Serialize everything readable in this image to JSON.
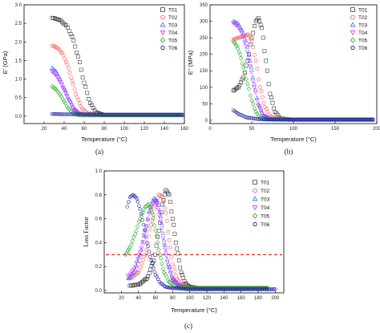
{
  "colors": {
    "T01": "#333333",
    "T02": "#ff4d4d",
    "T03": "#3a5fff",
    "T04": "#cc33ff",
    "T05": "#22aa22",
    "T06": "#2222aa",
    "reference_line": "#ee1111"
  },
  "marker_icons": {
    "T01": "square-icon",
    "T02": "circle-icon",
    "T03": "triangle-up-icon",
    "T04": "triangle-down-icon",
    "T05": "diamond-icon",
    "T06": "hexagon-icon"
  },
  "chart_data": [
    {
      "type": "scatter",
      "caption": "(a)",
      "xlabel": "Temperature (°C)",
      "ylabel": "E' (GPa)",
      "xlim": [
        0,
        160
      ],
      "ylim": [
        -0.2,
        3.0
      ],
      "xticks": [
        "20",
        "40",
        "60",
        "80",
        "100",
        "120",
        "140",
        "160"
      ],
      "yticks": [
        "0.0",
        "0.5",
        "1.0",
        "1.5",
        "2.0",
        "2.5",
        "3.0"
      ],
      "legend_position": "top-right",
      "series": [
        {
          "name": "T01",
          "x": [
            28,
            35,
            42,
            48,
            54,
            60,
            66,
            72,
            80,
            100,
            130,
            158
          ],
          "y": [
            2.65,
            2.6,
            2.45,
            2.15,
            1.6,
            0.9,
            0.35,
            0.1,
            0.03,
            0.03,
            0.03,
            0.03
          ]
        },
        {
          "name": "T02",
          "x": [
            28,
            33,
            38,
            43,
            48,
            53,
            58,
            64,
            75,
            100,
            130,
            158
          ],
          "y": [
            1.9,
            1.85,
            1.7,
            1.4,
            0.95,
            0.5,
            0.2,
            0.07,
            0.03,
            0.03,
            0.03,
            0.03
          ]
        },
        {
          "name": "T03",
          "x": [
            28,
            32,
            36,
            40,
            45,
            50,
            55,
            60,
            70,
            100,
            130,
            158
          ],
          "y": [
            1.3,
            1.2,
            1.0,
            0.75,
            0.45,
            0.2,
            0.08,
            0.04,
            0.03,
            0.03,
            0.03,
            0.03
          ]
        },
        {
          "name": "T04",
          "x": [
            28,
            32,
            36,
            40,
            45,
            50,
            55,
            60,
            70,
            100,
            130,
            158
          ],
          "y": [
            1.2,
            1.1,
            0.92,
            0.7,
            0.42,
            0.18,
            0.07,
            0.04,
            0.03,
            0.03,
            0.03,
            0.03
          ]
        },
        {
          "name": "T05",
          "x": [
            28,
            32,
            36,
            40,
            44,
            48,
            52,
            56,
            66,
            100,
            130,
            158
          ],
          "y": [
            0.8,
            0.72,
            0.58,
            0.4,
            0.22,
            0.1,
            0.05,
            0.03,
            0.03,
            0.03,
            0.03,
            0.03
          ]
        },
        {
          "name": "T06",
          "x": [
            28,
            40,
            60,
            80,
            100,
            120,
            140,
            158
          ],
          "y": [
            0.06,
            0.05,
            0.05,
            0.04,
            0.04,
            0.04,
            0.04,
            0.04
          ]
        }
      ]
    },
    {
      "type": "scatter",
      "caption": "(b)",
      "xlabel": "Temperature (°C)",
      "ylabel": "E'' (MPa)",
      "xlim": [
        0,
        200
      ],
      "ylim": [
        -10,
        350
      ],
      "xticks": [
        "0",
        "50",
        "100",
        "150",
        "200"
      ],
      "yticks": [
        "0",
        "50",
        "100",
        "150",
        "200",
        "250",
        "300",
        "350"
      ],
      "legend_position": "top-right",
      "series": [
        {
          "name": "T01",
          "x": [
            28,
            34,
            40,
            45,
            50,
            55,
            58,
            62,
            67,
            72,
            78,
            85,
            100,
            150,
            195
          ],
          "y": [
            90,
            100,
            130,
            180,
            250,
            300,
            310,
            280,
            180,
            80,
            25,
            5,
            2,
            2,
            2
          ]
        },
        {
          "name": "T02",
          "x": [
            28,
            34,
            40,
            46,
            50,
            55,
            60,
            66,
            72,
            80,
            100,
            150,
            195
          ],
          "y": [
            245,
            250,
            255,
            260,
            240,
            180,
            100,
            40,
            12,
            4,
            2,
            2,
            2
          ]
        },
        {
          "name": "T03",
          "x": [
            28,
            33,
            38,
            43,
            48,
            53,
            58,
            64,
            72,
            100,
            150,
            195
          ],
          "y": [
            300,
            295,
            275,
            240,
            180,
            110,
            50,
            15,
            4,
            2,
            2,
            2
          ]
        },
        {
          "name": "T04",
          "x": [
            28,
            33,
            38,
            43,
            48,
            53,
            58,
            64,
            72,
            100,
            150,
            195
          ],
          "y": [
            295,
            285,
            265,
            225,
            165,
            100,
            45,
            14,
            4,
            2,
            2,
            2
          ]
        },
        {
          "name": "T05",
          "x": [
            28,
            32,
            36,
            40,
            45,
            50,
            55,
            60,
            68,
            100,
            150,
            195
          ],
          "y": [
            240,
            225,
            200,
            160,
            110,
            60,
            25,
            8,
            3,
            2,
            2,
            2
          ]
        },
        {
          "name": "T06",
          "x": [
            28,
            35,
            45,
            60,
            80,
            100,
            150,
            195
          ],
          "y": [
            30,
            18,
            8,
            3,
            2,
            2,
            2,
            2
          ]
        }
      ]
    },
    {
      "type": "scatter",
      "caption": "(c)",
      "xlabel": "Temperature (°C)",
      "ylabel": "Loss Factor",
      "xlim": [
        0,
        210
      ],
      "ylim": [
        -0.02,
        1.0
      ],
      "xticks": [
        "20",
        "40",
        "60",
        "80",
        "100",
        "120",
        "140",
        "160",
        "180",
        "200"
      ],
      "yticks": [
        "0.0",
        "0.2",
        "0.4",
        "0.6",
        "0.8",
        "1.0"
      ],
      "reference_line_y": 0.3,
      "legend_position": "top-right",
      "series": [
        {
          "name": "T01",
          "x": [
            30,
            40,
            50,
            58,
            64,
            68,
            72,
            76,
            80,
            85,
            90,
            95,
            100,
            110,
            130,
            160,
            190
          ],
          "y": [
            0.04,
            0.05,
            0.1,
            0.25,
            0.5,
            0.72,
            0.84,
            0.8,
            0.6,
            0.35,
            0.15,
            0.06,
            0.03,
            0.02,
            0.02,
            0.02,
            0.02
          ]
        },
        {
          "name": "T02",
          "x": [
            30,
            40,
            48,
            55,
            60,
            64,
            68,
            72,
            76,
            80,
            85,
            90,
            100,
            130,
            190
          ],
          "y": [
            0.1,
            0.15,
            0.3,
            0.55,
            0.72,
            0.8,
            0.78,
            0.65,
            0.42,
            0.22,
            0.1,
            0.05,
            0.02,
            0.02,
            0.02
          ]
        },
        {
          "name": "T03",
          "x": [
            28,
            35,
            42,
            48,
            54,
            58,
            62,
            66,
            70,
            75,
            80,
            88,
            100,
            130,
            190
          ],
          "y": [
            0.1,
            0.15,
            0.3,
            0.5,
            0.7,
            0.77,
            0.75,
            0.62,
            0.42,
            0.22,
            0.1,
            0.04,
            0.02,
            0.02,
            0.02
          ]
        },
        {
          "name": "T04",
          "x": [
            28,
            35,
            42,
            48,
            54,
            58,
            62,
            66,
            70,
            75,
            80,
            88,
            100,
            130,
            190
          ],
          "y": [
            0.12,
            0.18,
            0.32,
            0.5,
            0.68,
            0.75,
            0.72,
            0.58,
            0.38,
            0.2,
            0.09,
            0.04,
            0.02,
            0.02,
            0.02
          ]
        },
        {
          "name": "T05",
          "x": [
            25,
            30,
            36,
            42,
            48,
            52,
            56,
            60,
            65,
            70,
            76,
            85,
            100,
            130,
            190
          ],
          "y": [
            0.3,
            0.36,
            0.47,
            0.6,
            0.7,
            0.72,
            0.65,
            0.5,
            0.3,
            0.15,
            0.07,
            0.03,
            0.02,
            0.02,
            0.02
          ]
        },
        {
          "name": "T06",
          "x": [
            27,
            30,
            34,
            38,
            42,
            46,
            50,
            55,
            60,
            66,
            72,
            80,
            100,
            150,
            200
          ],
          "y": [
            0.7,
            0.78,
            0.8,
            0.77,
            0.68,
            0.55,
            0.4,
            0.25,
            0.13,
            0.06,
            0.03,
            0.02,
            0.01,
            0.01,
            0.01
          ]
        }
      ]
    }
  ]
}
